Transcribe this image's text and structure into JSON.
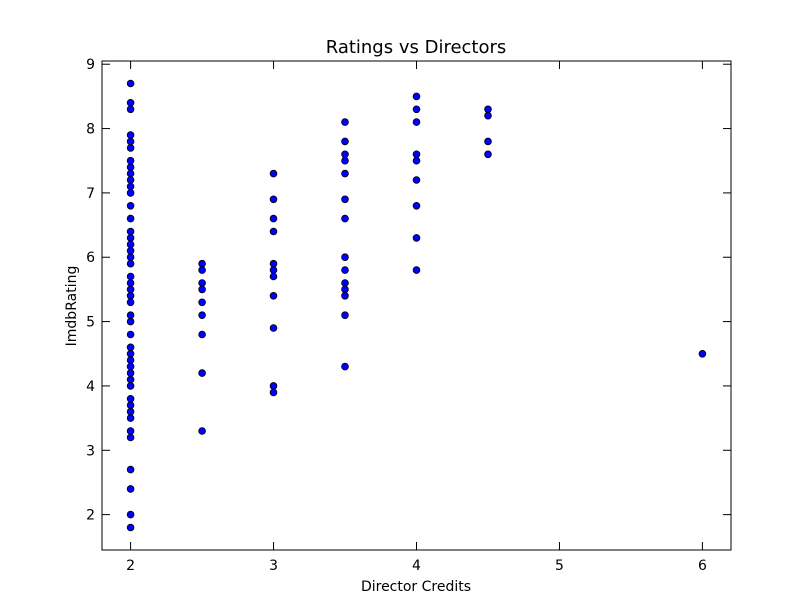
{
  "chart_data": {
    "type": "scatter",
    "title": "Ratings vs Directors",
    "xlabel": "Director Credits",
    "ylabel": "ImdbRating",
    "xlim": [
      1.8,
      6.2
    ],
    "ylim": [
      1.45,
      9.05
    ],
    "xticks": [
      2,
      3,
      4,
      5,
      6
    ],
    "yticks": [
      2,
      3,
      4,
      5,
      6,
      7,
      8,
      9
    ],
    "grid": false,
    "marker_color": "#0000ff",
    "marker_edge_color": "#000000",
    "series": [
      {
        "points": [
          [
            2,
            8.7
          ],
          [
            2,
            8.4
          ],
          [
            2,
            8.3
          ],
          [
            2,
            7.9
          ],
          [
            2,
            7.8
          ],
          [
            2,
            7.7
          ],
          [
            2,
            7.5
          ],
          [
            2,
            7.4
          ],
          [
            2,
            7.3
          ],
          [
            2,
            7.2
          ],
          [
            2,
            7.1
          ],
          [
            2,
            7.0
          ],
          [
            2,
            6.8
          ],
          [
            2,
            6.6
          ],
          [
            2,
            6.4
          ],
          [
            2,
            6.3
          ],
          [
            2,
            6.2
          ],
          [
            2,
            6.1
          ],
          [
            2,
            6.0
          ],
          [
            2,
            5.9
          ],
          [
            2,
            5.7
          ],
          [
            2,
            5.6
          ],
          [
            2,
            5.5
          ],
          [
            2,
            5.4
          ],
          [
            2,
            5.3
          ],
          [
            2,
            5.1
          ],
          [
            2,
            5.0
          ],
          [
            2,
            4.8
          ],
          [
            2,
            4.6
          ],
          [
            2,
            4.5
          ],
          [
            2,
            4.4
          ],
          [
            2,
            4.3
          ],
          [
            2,
            4.2
          ],
          [
            2,
            4.1
          ],
          [
            2,
            4.0
          ],
          [
            2,
            3.8
          ],
          [
            2,
            3.7
          ],
          [
            2,
            3.6
          ],
          [
            2,
            3.5
          ],
          [
            2,
            3.3
          ],
          [
            2,
            3.2
          ],
          [
            2,
            2.7
          ],
          [
            2,
            2.4
          ],
          [
            2,
            2.0
          ],
          [
            2,
            1.8
          ],
          [
            2.5,
            5.9
          ],
          [
            2.5,
            5.8
          ],
          [
            2.5,
            5.6
          ],
          [
            2.5,
            5.5
          ],
          [
            2.5,
            5.3
          ],
          [
            2.5,
            5.1
          ],
          [
            2.5,
            4.8
          ],
          [
            2.5,
            4.2
          ],
          [
            2.5,
            3.3
          ],
          [
            3,
            7.3
          ],
          [
            3,
            6.9
          ],
          [
            3,
            6.6
          ],
          [
            3,
            6.4
          ],
          [
            3,
            5.9
          ],
          [
            3,
            5.8
          ],
          [
            3,
            5.7
          ],
          [
            3,
            5.4
          ],
          [
            3,
            4.9
          ],
          [
            3,
            4.0
          ],
          [
            3,
            3.9
          ],
          [
            3.5,
            8.1
          ],
          [
            3.5,
            7.8
          ],
          [
            3.5,
            7.6
          ],
          [
            3.5,
            7.5
          ],
          [
            3.5,
            7.3
          ],
          [
            3.5,
            6.9
          ],
          [
            3.5,
            6.6
          ],
          [
            3.5,
            6.0
          ],
          [
            3.5,
            5.8
          ],
          [
            3.5,
            5.6
          ],
          [
            3.5,
            5.5
          ],
          [
            3.5,
            5.4
          ],
          [
            3.5,
            5.1
          ],
          [
            3.5,
            4.3
          ],
          [
            4,
            8.5
          ],
          [
            4,
            8.3
          ],
          [
            4,
            8.1
          ],
          [
            4,
            7.6
          ],
          [
            4,
            7.5
          ],
          [
            4,
            7.2
          ],
          [
            4,
            6.8
          ],
          [
            4,
            6.3
          ],
          [
            4,
            5.8
          ],
          [
            4.5,
            8.3
          ],
          [
            4.5,
            8.2
          ],
          [
            4.5,
            7.8
          ],
          [
            4.5,
            7.6
          ],
          [
            6,
            4.5
          ]
        ]
      }
    ]
  }
}
